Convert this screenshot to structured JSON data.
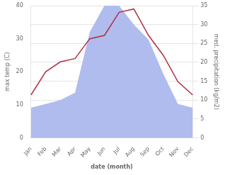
{
  "chart_data": {
    "type": "line",
    "xlabel": "date (month)",
    "ylabel": "max temp (C)",
    "y2label": "med. precipitation (kg/m2)",
    "categories": [
      "Jan",
      "Feb",
      "Mar",
      "Apr",
      "May",
      "Jun",
      "Jul",
      "Aug",
      "Sep",
      "Oct",
      "Nov",
      "Dec"
    ],
    "series": [
      {
        "type": "area",
        "axis": "y2",
        "color": "#b0bcee",
        "values": [
          8,
          9,
          10,
          12,
          28,
          35,
          35,
          30,
          26,
          17,
          9,
          8
        ]
      },
      {
        "type": "line",
        "color": "#b03040",
        "values": [
          13,
          20,
          23,
          24,
          30,
          31,
          38,
          39,
          31,
          25,
          17,
          13
        ]
      }
    ],
    "ylim": [
      0,
      40
    ],
    "yticks": [
      0,
      10,
      20,
      30,
      40
    ],
    "y2lim": [
      0,
      35
    ],
    "y2ticks": [
      0,
      5,
      10,
      15,
      20,
      25,
      30,
      35
    ],
    "grid": "y2"
  }
}
